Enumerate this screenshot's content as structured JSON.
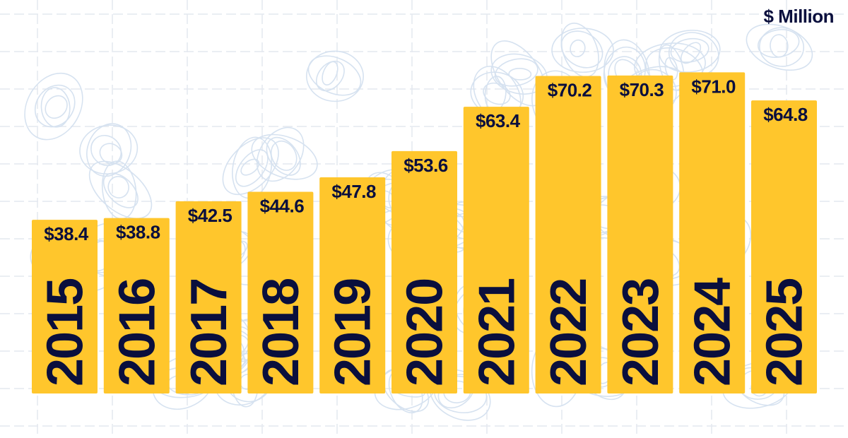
{
  "chart_data": {
    "type": "bar",
    "title": "",
    "unit_label": "$ Million",
    "categories": [
      "2015",
      "2016",
      "2017",
      "2018",
      "2019",
      "2020",
      "2021",
      "2022",
      "2023",
      "2024",
      "2025"
    ],
    "values": [
      38.4,
      38.8,
      42.5,
      44.6,
      47.8,
      53.6,
      63.4,
      70.2,
      70.3,
      71.0,
      64.8
    ],
    "data_labels": [
      "$38.4",
      "$38.8",
      "$42.5",
      "$44.6",
      "$47.8",
      "$53.6",
      "$63.4",
      "$70.2",
      "$70.3",
      "$71.0",
      "$64.8"
    ],
    "xlabel": "",
    "ylabel": "",
    "ylim": [
      0,
      87
    ],
    "grid": false,
    "colors": {
      "bar": "#FFC62C",
      "text": "#0A0F3D",
      "background_pattern": "#D6E2F0"
    }
  }
}
